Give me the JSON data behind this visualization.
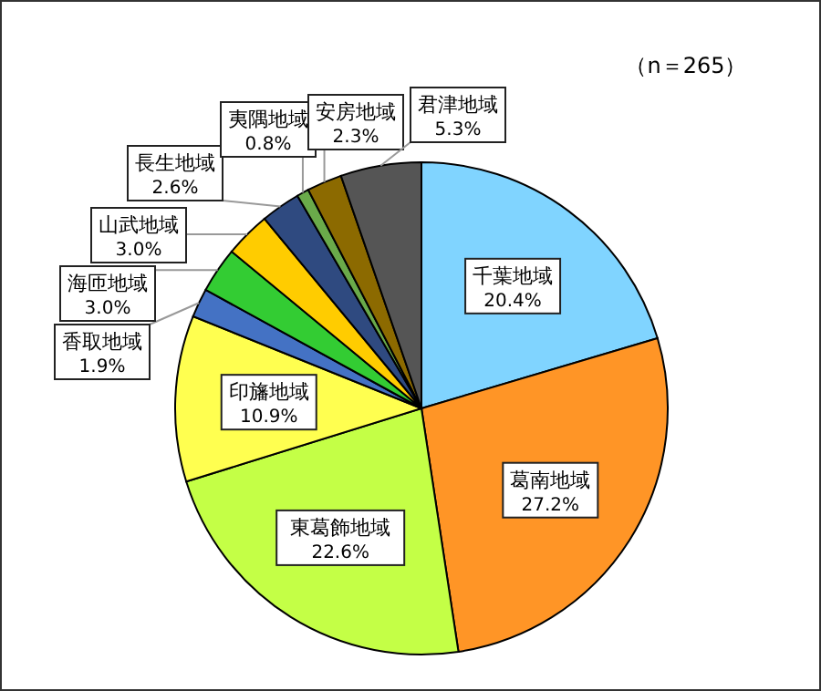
{
  "chart_data": {
    "type": "pie",
    "categories": [
      "千葉地域",
      "葛南地域",
      "東葛飾地域",
      "印旛地域",
      "香取地域",
      "海匝地域",
      "山武地域",
      "長生地域",
      "夷隅地域",
      "安房地域",
      "君津地域"
    ],
    "values": [
      20.4,
      27.2,
      22.6,
      10.9,
      1.9,
      3.0,
      3.0,
      2.6,
      0.8,
      2.3,
      5.3
    ],
    "colors": [
      "#80d4ff",
      "#ff9526",
      "#c4ff46",
      "#ffff50",
      "#4472c4",
      "#33cc33",
      "#ffcc00",
      "#2f4a80",
      "#6aaa4a",
      "#8c6a00",
      "#555555"
    ],
    "value_labels": [
      "20.4%",
      "27.2%",
      "22.6%",
      "10.9%",
      "1.9%",
      "3.0%",
      "3.0%",
      "2.6%",
      "0.8%",
      "2.3%",
      "5.3%"
    ],
    "annotations": [
      "（n＝265）"
    ]
  }
}
